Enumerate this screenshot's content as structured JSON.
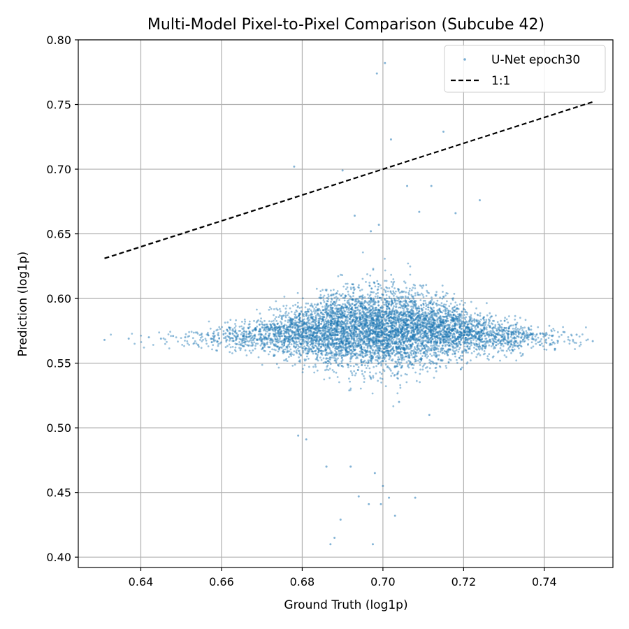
{
  "chart_data": {
    "type": "scatter",
    "title": "Multi-Model Pixel-to-Pixel Comparison (Subcube 42)",
    "xlabel": "Ground Truth (log1p)",
    "ylabel": "Prediction (log1p)",
    "xlim": [
      0.6245,
      0.757
    ],
    "ylim": [
      0.392,
      0.8
    ],
    "xticks": [
      0.64,
      0.66,
      0.68,
      0.7,
      0.72,
      0.74
    ],
    "xtick_labels": [
      "0.64",
      "0.66",
      "0.68",
      "0.70",
      "0.72",
      "0.74"
    ],
    "yticks": [
      0.4,
      0.45,
      0.5,
      0.55,
      0.6,
      0.65,
      0.7,
      0.75,
      0.8
    ],
    "ytick_labels": [
      "0.40",
      "0.45",
      "0.50",
      "0.55",
      "0.60",
      "0.65",
      "0.70",
      "0.75",
      "0.80"
    ],
    "grid": true,
    "legend_position": "top-right",
    "series": [
      {
        "name": "U-Net epoch30",
        "kind": "scatter",
        "color": "#1f77b4",
        "x": [
          0.631,
          0.637,
          0.642,
          0.645,
          0.648,
          0.651,
          0.655,
          0.658,
          0.661,
          0.664,
          0.667,
          0.67,
          0.672,
          0.675,
          0.677,
          0.679,
          0.681,
          0.683,
          0.685,
          0.687,
          0.689,
          0.691,
          0.693,
          0.695,
          0.697,
          0.699,
          0.701,
          0.703,
          0.705,
          0.707,
          0.709,
          0.711,
          0.713,
          0.715,
          0.717,
          0.719,
          0.721,
          0.723,
          0.725,
          0.727,
          0.729,
          0.731,
          0.733,
          0.735,
          0.737,
          0.739,
          0.742,
          0.745,
          0.748,
          0.752,
          0.6985,
          0.7005,
          0.702,
          0.69,
          0.715,
          0.706,
          0.678,
          0.693,
          0.712,
          0.709,
          0.688,
          0.687,
          0.6895,
          0.692,
          0.6975,
          0.6995,
          0.7015,
          0.6965,
          0.694,
          0.698,
          0.703,
          0.7,
          0.708,
          0.679,
          0.681,
          0.704,
          0.686,
          0.7115,
          0.724,
          0.718,
          0.699,
          0.697,
          0.71
        ],
        "y": [
          0.568,
          0.569,
          0.57,
          0.569,
          0.571,
          0.57,
          0.572,
          0.569,
          0.573,
          0.571,
          0.574,
          0.572,
          0.576,
          0.571,
          0.578,
          0.569,
          0.58,
          0.568,
          0.584,
          0.565,
          0.59,
          0.56,
          0.595,
          0.555,
          0.6,
          0.55,
          0.598,
          0.556,
          0.594,
          0.562,
          0.59,
          0.566,
          0.587,
          0.568,
          0.583,
          0.57,
          0.58,
          0.571,
          0.577,
          0.572,
          0.575,
          0.572,
          0.574,
          0.573,
          0.572,
          0.573,
          0.571,
          0.574,
          0.572,
          0.567,
          0.774,
          0.782,
          0.723,
          0.699,
          0.729,
          0.687,
          0.702,
          0.664,
          0.687,
          0.667,
          0.415,
          0.41,
          0.429,
          0.47,
          0.41,
          0.441,
          0.446,
          0.441,
          0.447,
          0.465,
          0.432,
          0.455,
          0.446,
          0.494,
          0.491,
          0.52,
          0.47,
          0.51,
          0.676,
          0.666,
          0.657,
          0.652,
          0.61
        ]
      },
      {
        "name": "1:1",
        "kind": "line",
        "style": "dashed",
        "color": "#000000",
        "x": [
          0.631,
          0.752
        ],
        "y": [
          0.631,
          0.752
        ]
      }
    ]
  }
}
